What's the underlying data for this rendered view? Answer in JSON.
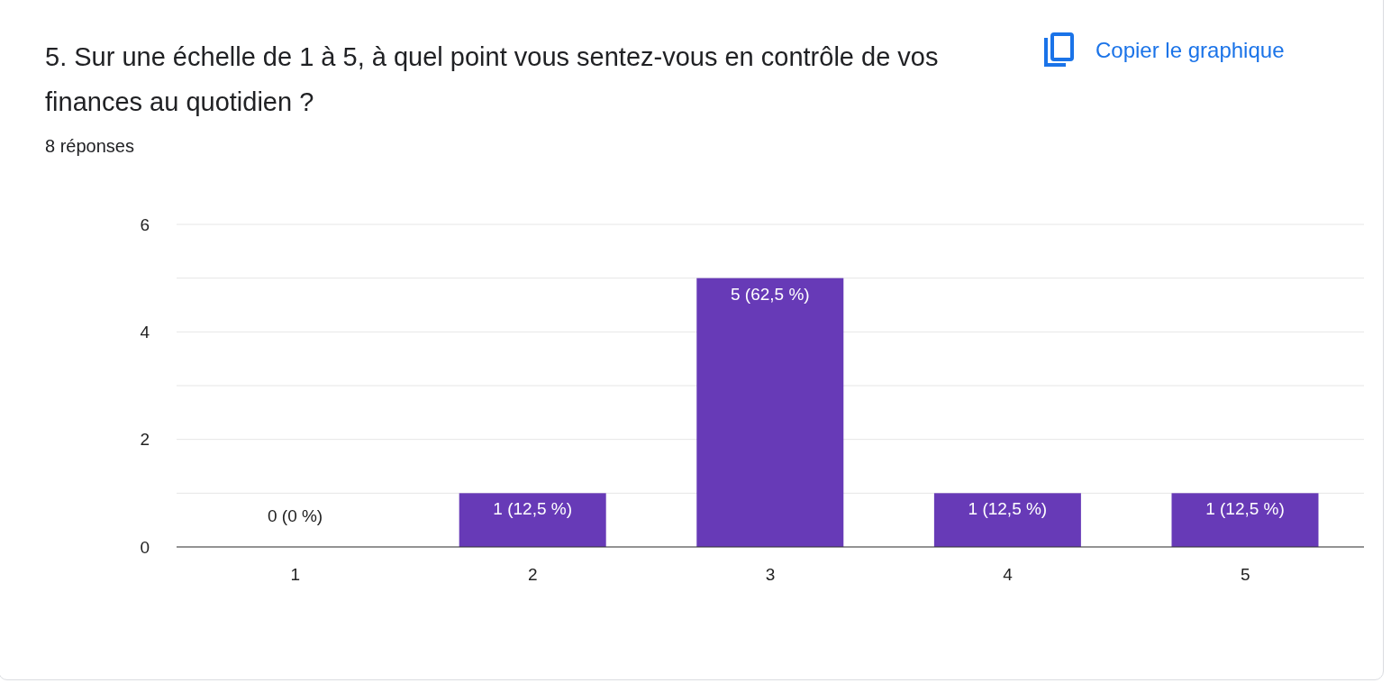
{
  "chart_data": {
    "type": "bar",
    "title": "5. Sur une échelle de 1 à 5, à quel point vous sentez-vous en contrôle de vos finances au quotidien ?",
    "subtitle": "8 réponses",
    "annotations": [
      "Copier le graphique"
    ],
    "categories": [
      "1",
      "2",
      "3",
      "4",
      "5"
    ],
    "values": [
      0,
      1,
      5,
      1,
      1
    ],
    "color": "#673ab7",
    "value_labels": [
      "0 (0 %)",
      "1 (12,5 %)",
      "5 (62,5 %)",
      "1 (12,5 %)",
      "1 (12,5 %)"
    ],
    "ylim": [
      0,
      6
    ],
    "yticks": [
      0,
      {
        "value": 1,
        "label": null
      },
      2,
      {
        "value": 3,
        "label": null
      },
      4,
      {
        "value": 5,
        "label": null
      },
      6
    ],
    "grid": "y"
  }
}
